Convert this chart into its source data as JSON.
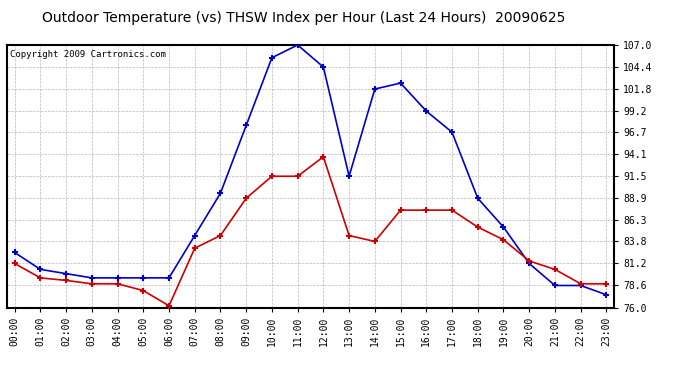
{
  "title": "Outdoor Temperature (vs) THSW Index per Hour (Last 24 Hours)  20090625",
  "copyright": "Copyright 2009 Cartronics.com",
  "hours": [
    "00:00",
    "01:00",
    "02:00",
    "03:00",
    "04:00",
    "05:00",
    "06:00",
    "07:00",
    "08:00",
    "09:00",
    "10:00",
    "11:00",
    "12:00",
    "13:00",
    "14:00",
    "15:00",
    "16:00",
    "17:00",
    "18:00",
    "19:00",
    "20:00",
    "21:00",
    "22:00",
    "23:00"
  ],
  "thsw": [
    82.5,
    80.5,
    80.0,
    79.5,
    79.5,
    79.5,
    79.5,
    84.5,
    89.5,
    97.5,
    105.5,
    107.0,
    104.4,
    91.5,
    101.8,
    102.5,
    99.2,
    96.7,
    88.9,
    85.5,
    81.2,
    78.6,
    78.6,
    77.5
  ],
  "temp": [
    81.2,
    79.5,
    79.2,
    78.8,
    78.8,
    78.0,
    76.2,
    83.0,
    84.5,
    88.9,
    91.5,
    91.5,
    93.8,
    84.5,
    83.8,
    87.5,
    87.5,
    87.5,
    85.5,
    84.0,
    81.5,
    80.5,
    78.8,
    78.8
  ],
  "ylim_min": 76.0,
  "ylim_max": 107.0,
  "yticks": [
    76.0,
    78.6,
    81.2,
    83.8,
    86.3,
    88.9,
    91.5,
    94.1,
    96.7,
    99.2,
    101.8,
    104.4,
    107.0
  ],
  "thsw_color": "#0000cc",
  "temp_color": "#cc0000",
  "bg_color": "#ffffff",
  "grid_color": "#b0b0b0",
  "title_fontsize": 10,
  "copyright_fontsize": 6.5,
  "tick_fontsize": 7
}
